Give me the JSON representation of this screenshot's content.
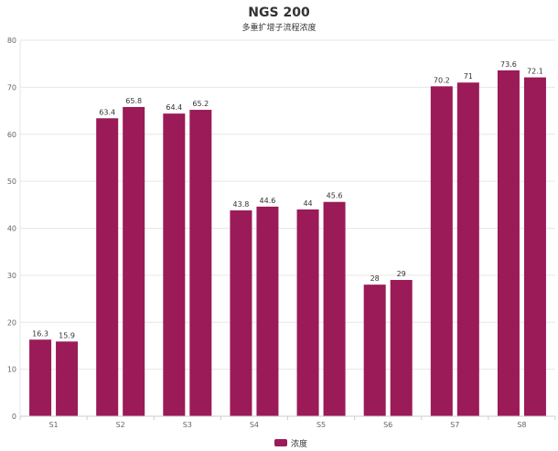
{
  "chart_data": {
    "type": "bar",
    "title": "NGS 200",
    "subtitle": "多重扩增子流程浓度",
    "categories": [
      "S1",
      "S2",
      "S3",
      "S4",
      "S5",
      "S6",
      "S7",
      "S8"
    ],
    "series": [
      {
        "name": "浓度",
        "values": [
          16.3,
          63.4,
          64.4,
          43.8,
          44,
          28,
          70.2,
          73.6
        ]
      },
      {
        "name": "浓度",
        "values": [
          15.9,
          65.8,
          65.2,
          44.6,
          45.6,
          29,
          71,
          72.1
        ]
      }
    ],
    "ylim": [
      0,
      80
    ],
    "yticks": [
      0,
      10,
      20,
      30,
      40,
      50,
      60,
      70,
      80
    ],
    "legend": {
      "label": "浓度",
      "position": "bottom-center"
    },
    "grid": true,
    "colors": {
      "bar": "#9b1a58",
      "grid": "#e6e6e6",
      "axis": "#cccccc",
      "text": "#333333",
      "tick": "#666666"
    }
  }
}
